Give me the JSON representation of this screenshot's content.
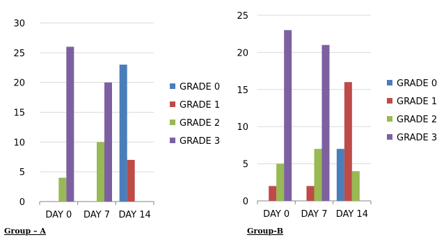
{
  "series_colors": {
    "GRADE 0": "#4a7ebb",
    "GRADE 1": "#be4b48",
    "GRADE 2": "#98b954",
    "GRADE 3": "#7d60a0"
  },
  "chart_data": [
    {
      "type": "bar",
      "categories": [
        "DAY 0",
        "DAY 7",
        "DAY 14"
      ],
      "series": [
        {
          "name": "GRADE 0",
          "values": [
            0,
            0,
            23
          ]
        },
        {
          "name": "GRADE 1",
          "values": [
            0,
            0,
            7
          ]
        },
        {
          "name": "GRADE 2",
          "values": [
            4,
            10,
            0
          ]
        },
        {
          "name": "GRADE 3",
          "values": [
            26,
            20,
            0
          ]
        }
      ],
      "ylim": [
        0,
        30
      ],
      "yticks": [
        0,
        5,
        10,
        15,
        20,
        25,
        30
      ],
      "ytick_labels": [
        "0",
        "5",
        "10",
        "15",
        "20",
        "25",
        "30"
      ],
      "grid": true,
      "legend_position": "right",
      "caption": "Group – A"
    },
    {
      "type": "bar",
      "categories": [
        "DAY 0",
        "DAY 7",
        "DAY 14"
      ],
      "series": [
        {
          "name": "GRADE 0",
          "values": [
            0,
            0,
            7
          ]
        },
        {
          "name": "GRADE 1",
          "values": [
            2,
            2,
            16
          ]
        },
        {
          "name": "GRADE 2",
          "values": [
            5,
            7,
            4
          ]
        },
        {
          "name": "GRADE 3",
          "values": [
            23,
            21,
            0
          ]
        }
      ],
      "ylim": [
        0,
        25
      ],
      "yticks": [
        0,
        5,
        10,
        15,
        20,
        25
      ],
      "ytick_labels": [
        "0",
        "5",
        "10",
        "15",
        "20",
        "25"
      ],
      "grid": true,
      "legend_position": "right",
      "caption": "Group-B"
    }
  ]
}
